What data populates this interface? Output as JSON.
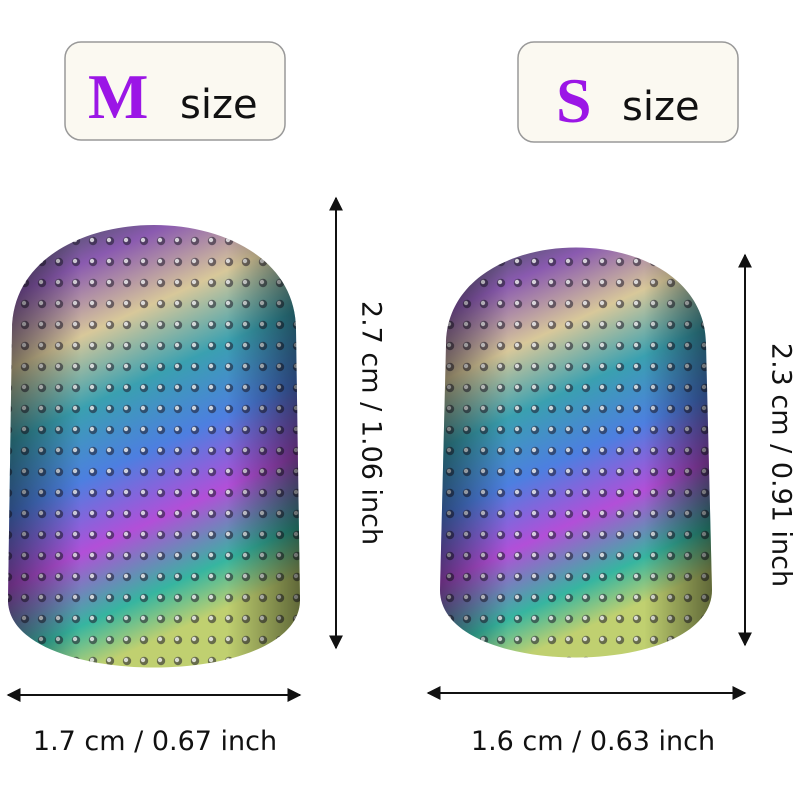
{
  "products": [
    {
      "size_letter": "M",
      "size_word": "size",
      "height": "2.7 cm / 1.06 inch",
      "width": "1.7 cm / 0.67 inch"
    },
    {
      "size_letter": "S",
      "size_word": "size",
      "height": "2.3 cm / 0.91 inch",
      "width": "1.6 cm / 0.63 inch"
    }
  ]
}
